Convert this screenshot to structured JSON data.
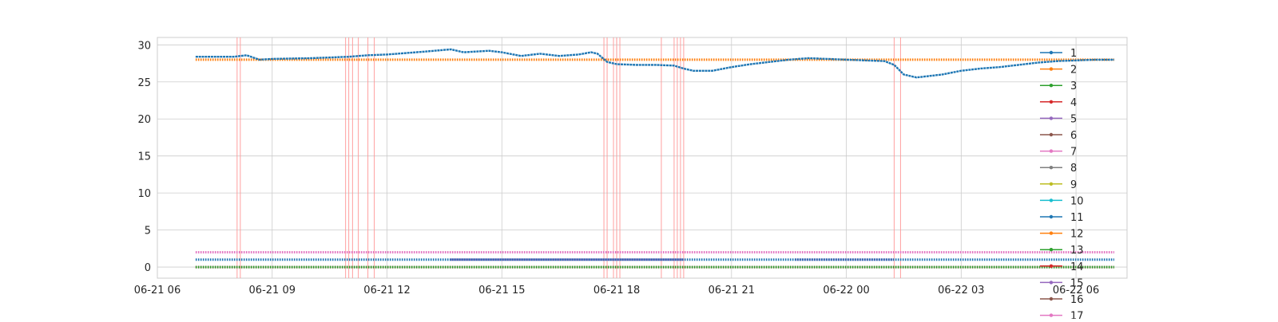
{
  "chart_data": {
    "type": "line",
    "title": "",
    "xlabel": "",
    "ylabel": "",
    "x_range": [
      "2021-06-21 06:00",
      "2021-06-22 07:20"
    ],
    "ylim": [
      -1.5,
      31
    ],
    "x_ticks": [
      {
        "t": "2021-06-21 06:00",
        "label": "06-21 06"
      },
      {
        "t": "2021-06-21 09:00",
        "label": "06-21 09"
      },
      {
        "t": "2021-06-21 12:00",
        "label": "06-21 12"
      },
      {
        "t": "2021-06-21 15:00",
        "label": "06-21 15"
      },
      {
        "t": "2021-06-21 18:00",
        "label": "06-21 18"
      },
      {
        "t": "2021-06-21 21:00",
        "label": "06-21 21"
      },
      {
        "t": "2021-06-22 00:00",
        "label": "06-22 00"
      },
      {
        "t": "2021-06-22 03:00",
        "label": "06-22 03"
      },
      {
        "t": "2021-06-22 06:00",
        "label": "06-22 06"
      }
    ],
    "y_ticks": [
      0,
      5,
      10,
      15,
      20,
      25,
      30
    ],
    "grid": true,
    "legend_position": "right",
    "legend_entries": [
      "1",
      "2",
      "3",
      "4",
      "5",
      "6",
      "7",
      "8",
      "9",
      "10",
      "11",
      "12",
      "13",
      "14",
      "15",
      "16",
      "17"
    ],
    "series": [
      {
        "name": "1",
        "color": "#1f77b4",
        "points": [
          [
            "2021-06-21 07:00",
            28.4
          ],
          [
            "2021-06-21 08:00",
            28.4
          ],
          [
            "2021-06-21 08:20",
            28.6
          ],
          [
            "2021-06-21 08:40",
            28.0
          ],
          [
            "2021-06-21 09:00",
            28.1
          ],
          [
            "2021-06-21 10:00",
            28.2
          ],
          [
            "2021-06-21 11:00",
            28.4
          ],
          [
            "2021-06-21 11:30",
            28.6
          ],
          [
            "2021-06-21 12:00",
            28.7
          ],
          [
            "2021-06-21 13:00",
            29.1
          ],
          [
            "2021-06-21 13:40",
            29.4
          ],
          [
            "2021-06-21 14:00",
            29.0
          ],
          [
            "2021-06-21 14:40",
            29.2
          ],
          [
            "2021-06-21 15:00",
            29.0
          ],
          [
            "2021-06-21 15:30",
            28.5
          ],
          [
            "2021-06-21 16:00",
            28.8
          ],
          [
            "2021-06-21 16:30",
            28.5
          ],
          [
            "2021-06-21 17:00",
            28.7
          ],
          [
            "2021-06-21 17:20",
            29.0
          ],
          [
            "2021-06-21 17:30",
            28.8
          ],
          [
            "2021-06-21 17:45",
            27.7
          ],
          [
            "2021-06-21 18:00",
            27.4
          ],
          [
            "2021-06-21 18:30",
            27.3
          ],
          [
            "2021-06-21 19:00",
            27.3
          ],
          [
            "2021-06-21 19:30",
            27.2
          ],
          [
            "2021-06-21 19:45",
            26.8
          ],
          [
            "2021-06-21 20:00",
            26.5
          ],
          [
            "2021-06-21 20:30",
            26.5
          ],
          [
            "2021-06-21 21:00",
            27.0
          ],
          [
            "2021-06-21 21:30",
            27.4
          ],
          [
            "2021-06-21 22:00",
            27.7
          ],
          [
            "2021-06-21 22:30",
            28.0
          ],
          [
            "2021-06-21 23:00",
            28.2
          ],
          [
            "2021-06-21 23:30",
            28.1
          ],
          [
            "2021-06-22 00:00",
            28.0
          ],
          [
            "2021-06-22 00:30",
            27.9
          ],
          [
            "2021-06-22 01:00",
            27.8
          ],
          [
            "2021-06-22 01:15",
            27.3
          ],
          [
            "2021-06-22 01:30",
            26.0
          ],
          [
            "2021-06-22 01:50",
            25.6
          ],
          [
            "2021-06-22 02:30",
            26.0
          ],
          [
            "2021-06-22 03:00",
            26.5
          ],
          [
            "2021-06-22 03:30",
            26.8
          ],
          [
            "2021-06-22 04:00",
            27.0
          ],
          [
            "2021-06-22 04:30",
            27.3
          ],
          [
            "2021-06-22 05:00",
            27.6
          ],
          [
            "2021-06-22 05:30",
            27.8
          ],
          [
            "2021-06-22 06:00",
            27.9
          ],
          [
            "2021-06-22 06:30",
            28.0
          ],
          [
            "2021-06-22 07:00",
            28.0
          ]
        ]
      },
      {
        "name": "2",
        "color": "#ff7f0e",
        "points": [
          [
            "2021-06-21 07:00",
            28.0
          ],
          [
            "2021-06-22 07:00",
            28.0
          ]
        ]
      },
      {
        "name": "7",
        "color": "#e377c2",
        "points": [
          [
            "2021-06-21 07:00",
            2.0
          ],
          [
            "2021-06-22 07:00",
            2.0
          ]
        ]
      },
      {
        "name": "11",
        "color": "#1f77b4",
        "points": [
          [
            "2021-06-21 07:00",
            1.0
          ],
          [
            "2021-06-22 07:00",
            1.0
          ]
        ]
      },
      {
        "name": "5",
        "color": "#9467bd",
        "points": [
          [
            "2021-06-21 13:40",
            1.0
          ],
          [
            "2021-06-21 19:45",
            1.0
          ]
        ]
      },
      {
        "name": "5",
        "color": "#9467bd",
        "points": [
          [
            "2021-06-21 22:40",
            1.0
          ],
          [
            "2021-06-22 01:15",
            1.0
          ]
        ]
      },
      {
        "name": "3",
        "color": "#2ca02c",
        "points": [
          [
            "2021-06-21 07:00",
            0.0
          ],
          [
            "2021-06-22 07:00",
            0.0
          ]
        ]
      },
      {
        "name": "4",
        "color": "#d62728",
        "points": [
          [
            "2021-06-21 07:00",
            0.0
          ],
          [
            "2021-06-22 07:00",
            0.0
          ]
        ]
      },
      {
        "name": "7",
        "color": "#e377c2",
        "points": [
          [
            "2021-06-21 07:00",
            0.0
          ],
          [
            "2021-06-22 07:00",
            0.0
          ]
        ]
      }
    ],
    "vertical_markers": [
      "2021-06-21 08:05",
      "2021-06-21 08:10",
      "2021-06-21 10:55",
      "2021-06-21 11:00",
      "2021-06-21 11:06",
      "2021-06-21 11:15",
      "2021-06-21 11:30",
      "2021-06-21 11:40",
      "2021-06-21 17:40",
      "2021-06-21 17:45",
      "2021-06-21 17:55",
      "2021-06-21 18:00",
      "2021-06-21 18:05",
      "2021-06-21 19:10",
      "2021-06-21 19:30",
      "2021-06-21 19:35",
      "2021-06-21 19:40",
      "2021-06-21 19:45",
      "2021-06-22 01:15",
      "2021-06-22 01:25"
    ],
    "marker_color": "#ff9999"
  },
  "legend_palette": [
    "#1f77b4",
    "#ff7f0e",
    "#2ca02c",
    "#d62728",
    "#9467bd",
    "#8c564b",
    "#e377c2",
    "#7f7f7f",
    "#bcbd22",
    "#17becf",
    "#1f77b4",
    "#ff7f0e",
    "#2ca02c",
    "#d62728",
    "#9467bd",
    "#8c564b",
    "#e377c2"
  ]
}
